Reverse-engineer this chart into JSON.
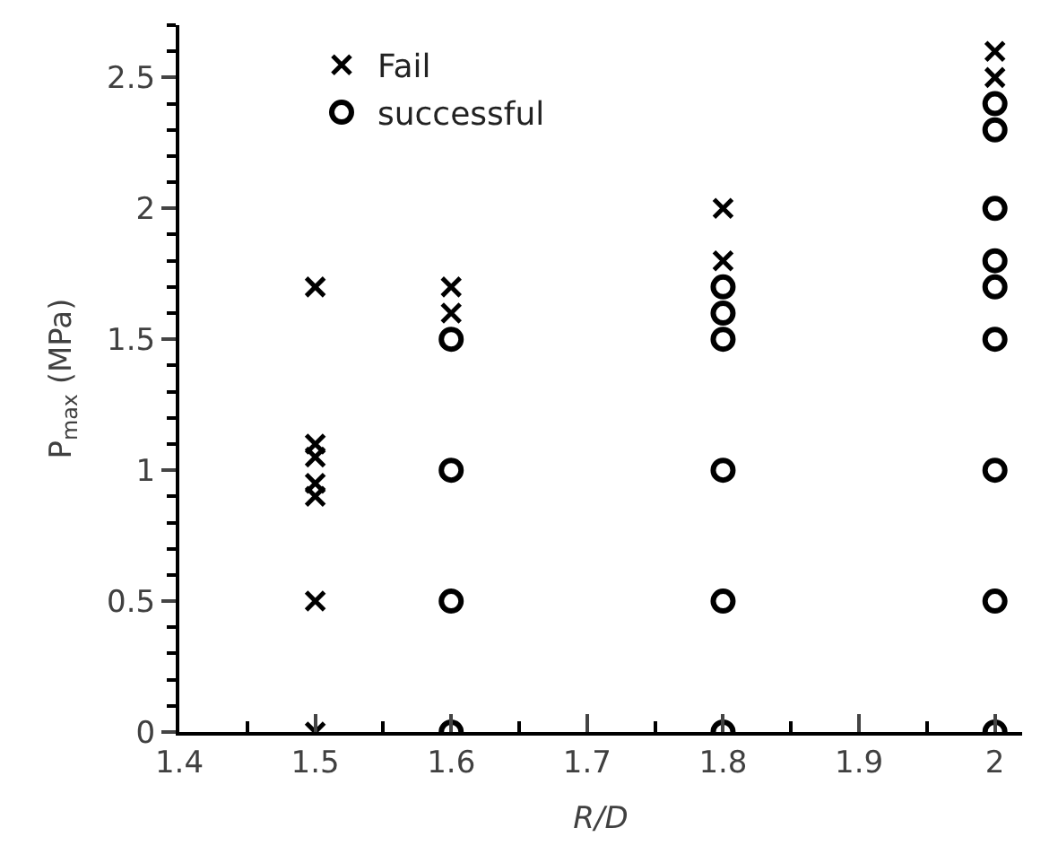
{
  "chart_data": {
    "type": "scatter",
    "xlabel": "R/D",
    "ylabel": "P$_{max}$ (MPa)",
    "xlim": [
      1.4,
      2.02
    ],
    "xticks": [
      1.4,
      1.5,
      1.6,
      1.7,
      1.8,
      1.9,
      2
    ],
    "ylim": [
      0,
      2.7
    ],
    "yticks": [
      0,
      0.5,
      1,
      1.5,
      2,
      2.5
    ],
    "legend": "top left",
    "series": [
      {
        "name": "Fail",
        "color": "#000000",
        "marker": "cross",
        "x": [
          1.5,
          1.5,
          1.5,
          1.5,
          1.5,
          1.5,
          1.5,
          1.6,
          1.6,
          1.8,
          1.8,
          2,
          2
        ],
        "values": [
          0,
          0.5,
          0.9,
          0.95,
          1.05,
          1.1,
          1.7,
          1.6,
          1.7,
          1.8,
          2.0,
          2.5,
          2.6
        ]
      },
      {
        "name": "successful",
        "color": "#000000",
        "marker": "circle",
        "x": [
          1.6,
          1.6,
          1.6,
          1.6,
          1.8,
          1.8,
          1.8,
          1.8,
          1.8,
          1.8,
          2,
          2,
          2,
          2,
          2,
          2,
          2,
          2,
          2
        ],
        "values": [
          0,
          0.5,
          1,
          1.5,
          0,
          0.5,
          1,
          1.5,
          1.6,
          1.7,
          0,
          0.5,
          1,
          1.5,
          1.7,
          1.8,
          2,
          2.3,
          2.4
        ]
      }
    ]
  }
}
